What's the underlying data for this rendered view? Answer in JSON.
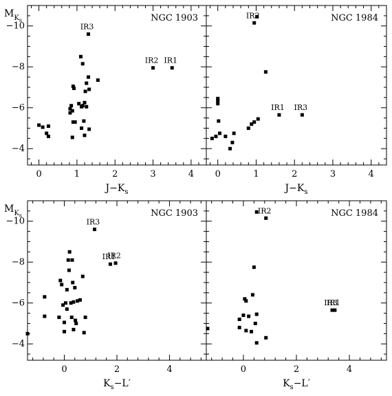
{
  "chart_data": [
    {
      "type": "scatter",
      "title": "NGC 1903",
      "xlabel": "J−K",
      "xlabel_sub": "s",
      "ylabel": "M",
      "ylabel_sub": "Ks",
      "xlim": [
        -0.3,
        4.4
      ],
      "ylim": [
        -3.2,
        -11.0
      ],
      "xticks": [
        0,
        1,
        2,
        3,
        4
      ],
      "yticks": [
        -4,
        -6,
        -8,
        -10
      ],
      "points": [
        [
          0.0,
          -5.15
        ],
        [
          0.1,
          -5.05
        ],
        [
          0.2,
          -4.75
        ],
        [
          0.25,
          -4.6
        ],
        [
          0.25,
          -5.1
        ],
        [
          0.82,
          -5.75
        ],
        [
          0.82,
          -5.95
        ],
        [
          0.85,
          -6.1
        ],
        [
          0.88,
          -5.85
        ],
        [
          0.88,
          -4.55
        ],
        [
          0.9,
          -5.3
        ],
        [
          0.9,
          -7.05
        ],
        [
          0.92,
          -6.95
        ],
        [
          0.95,
          -5.3
        ],
        [
          1.05,
          -6.2
        ],
        [
          1.1,
          -8.5
        ],
        [
          1.12,
          -5.0
        ],
        [
          1.12,
          -6.05
        ],
        [
          1.15,
          -8.15
        ],
        [
          1.15,
          -6.1
        ],
        [
          1.18,
          -5.35
        ],
        [
          1.2,
          -4.65
        ],
        [
          1.2,
          -6.25
        ],
        [
          1.22,
          -6.8
        ],
        [
          1.25,
          -6.05
        ],
        [
          1.25,
          -7.2
        ],
        [
          1.3,
          -7.5
        ],
        [
          1.32,
          -4.95
        ],
        [
          1.32,
          -6.9
        ],
        [
          1.3,
          -9.6
        ],
        [
          1.55,
          -7.35
        ],
        [
          3.0,
          -7.95
        ],
        [
          3.5,
          -7.95
        ]
      ],
      "annotations": [
        {
          "text": "IR3",
          "x": 1.3,
          "y": -9.6
        },
        {
          "text": "IR2",
          "x": 3.0,
          "y": -7.95
        },
        {
          "text": "IR1",
          "x": 3.5,
          "y": -7.95
        }
      ]
    },
    {
      "type": "scatter",
      "title": "NGC 1984",
      "xlabel": "J−K",
      "xlabel_sub": "s",
      "ylabel": "",
      "xlim": [
        -0.3,
        4.4
      ],
      "ylim": [
        -3.2,
        -11.0
      ],
      "xticks": [
        0,
        1,
        2,
        3,
        4
      ],
      "yticks": [
        -4,
        -6,
        -8,
        -10
      ],
      "points": [
        [
          -0.15,
          -4.5
        ],
        [
          -0.05,
          -4.6
        ],
        [
          0.0,
          -6.2
        ],
        [
          0.0,
          -6.35
        ],
        [
          0.0,
          -6.45
        ],
        [
          0.02,
          -5.35
        ],
        [
          0.05,
          -4.75
        ],
        [
          0.2,
          -4.6
        ],
        [
          0.32,
          -4.0
        ],
        [
          0.38,
          -4.3
        ],
        [
          0.42,
          -4.75
        ],
        [
          0.8,
          -5.0
        ],
        [
          0.88,
          -5.2
        ],
        [
          0.95,
          -5.3
        ],
        [
          1.05,
          -5.45
        ],
        [
          0.95,
          -10.15
        ],
        [
          1.02,
          -10.45
        ],
        [
          1.25,
          -7.75
        ],
        [
          1.6,
          -5.65
        ],
        [
          2.2,
          -5.65
        ]
      ],
      "annotations": [
        {
          "text": "IR2",
          "x": 0.95,
          "y": -10.15
        },
        {
          "text": "IR1",
          "x": 1.6,
          "y": -5.65
        },
        {
          "text": "IR3",
          "x": 2.2,
          "y": -5.65
        }
      ]
    },
    {
      "type": "scatter",
      "title": "NGC 1903",
      "xlabel": "K",
      "xlabel_sub": "s",
      "xlabel_suffix": "−L′",
      "ylabel": "M",
      "ylabel_sub": "Ks",
      "xlim": [
        -1.4,
        5.4
      ],
      "ylim": [
        -3.2,
        -11.0
      ],
      "xticks": [
        0,
        2,
        4
      ],
      "yticks": [
        -4,
        -6,
        -8,
        -10
      ],
      "points": [
        [
          -1.4,
          -4.5
        ],
        [
          -0.75,
          -6.3
        ],
        [
          -0.75,
          -5.35
        ],
        [
          -0.2,
          -5.3
        ],
        [
          -0.15,
          -7.1
        ],
        [
          -0.1,
          -6.9
        ],
        [
          -0.05,
          -5.9
        ],
        [
          0.0,
          -5.05
        ],
        [
          0.0,
          -4.6
        ],
        [
          0.05,
          -6.0
        ],
        [
          0.1,
          -5.7
        ],
        [
          0.1,
          -6.65
        ],
        [
          0.15,
          -8.1
        ],
        [
          0.18,
          -7.6
        ],
        [
          0.2,
          -8.5
        ],
        [
          0.25,
          -6.0
        ],
        [
          0.28,
          -5.3
        ],
        [
          0.3,
          -8.1
        ],
        [
          0.32,
          -7.0
        ],
        [
          0.35,
          -4.7
        ],
        [
          0.35,
          -6.05
        ],
        [
          0.4,
          -6.75
        ],
        [
          0.42,
          -5.15
        ],
        [
          0.45,
          -5.0
        ],
        [
          0.5,
          -6.1
        ],
        [
          0.6,
          -6.15
        ],
        [
          0.7,
          -7.3
        ],
        [
          0.75,
          -4.55
        ],
        [
          0.8,
          -5.3
        ],
        [
          1.15,
          -9.6
        ],
        [
          1.75,
          -7.9
        ],
        [
          1.95,
          -7.95
        ]
      ],
      "annotations": [
        {
          "text": "IR3",
          "x": 1.15,
          "y": -9.6
        },
        {
          "text": "IR1",
          "x": 1.75,
          "y": -7.9
        },
        {
          "text": "IR2",
          "x": 1.95,
          "y": -7.95
        }
      ]
    },
    {
      "type": "scatter",
      "title": "NGC 1984",
      "xlabel": "K",
      "xlabel_sub": "s",
      "xlabel_suffix": "−L′",
      "ylabel": "",
      "xlim": [
        -1.4,
        5.4
      ],
      "ylim": [
        -3.2,
        -11.0
      ],
      "xticks": [
        0,
        2,
        4
      ],
      "yticks": [
        -4,
        -6,
        -8,
        -10
      ],
      "points": [
        [
          -1.35,
          -4.75
        ],
        [
          -0.15,
          -5.2
        ],
        [
          -0.15,
          -4.8
        ],
        [
          0.0,
          -5.4
        ],
        [
          0.05,
          -6.2
        ],
        [
          0.1,
          -4.65
        ],
        [
          0.1,
          -6.1
        ],
        [
          0.2,
          -5.35
        ],
        [
          0.3,
          -4.6
        ],
        [
          0.35,
          -6.4
        ],
        [
          0.4,
          -7.75
        ],
        [
          0.45,
          -5.0
        ],
        [
          0.5,
          -5.45
        ],
        [
          0.5,
          -4.05
        ],
        [
          0.5,
          -10.45
        ],
        [
          0.85,
          -4.3
        ],
        [
          0.85,
          -10.15
        ],
        [
          3.35,
          -5.65
        ],
        [
          3.45,
          -5.65
        ]
      ],
      "annotations": [
        {
          "text": "IR2",
          "x": 0.85,
          "y": -10.15
        },
        {
          "text": "IR3",
          "x": 3.35,
          "y": -5.65
        },
        {
          "text": "IR1",
          "x": 3.45,
          "y": -5.65
        }
      ]
    }
  ]
}
